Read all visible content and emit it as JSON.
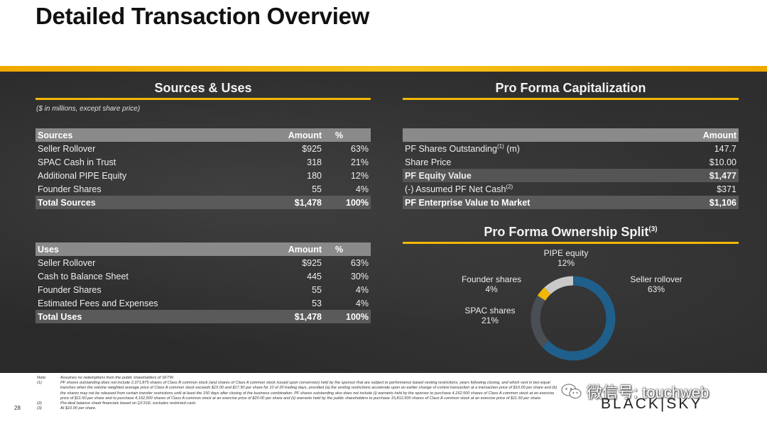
{
  "title": "Detailed Transaction Overview",
  "left_panel": {
    "title": "Sources & Uses",
    "note": "($ in millions, except share price)",
    "sources": {
      "headers": [
        "Sources",
        "Amount",
        "%"
      ],
      "rows": [
        {
          "label": "Seller Rollover",
          "amount": "$925",
          "pct": "63%"
        },
        {
          "label": "SPAC Cash in Trust",
          "amount": "318",
          "pct": "21%"
        },
        {
          "label": "Additional PIPE Equity",
          "amount": "180",
          "pct": "12%"
        },
        {
          "label": "Founder Shares",
          "amount": "55",
          "pct": "4%"
        }
      ],
      "total": {
        "label": "Total Sources",
        "amount": "$1,478",
        "pct": "100%"
      }
    },
    "uses": {
      "headers": [
        "Uses",
        "Amount",
        "%"
      ],
      "rows": [
        {
          "label": "Seller Rollover",
          "amount": "$925",
          "pct": "63%"
        },
        {
          "label": "Cash to Balance Sheet",
          "amount": "445",
          "pct": "30%"
        },
        {
          "label": "Founder Shares",
          "amount": "55",
          "pct": "4%"
        },
        {
          "label": "Estimated Fees and Expenses",
          "amount": "53",
          "pct": "4%"
        }
      ],
      "total": {
        "label": "Total Uses",
        "amount": "$1,478",
        "pct": "100%"
      }
    }
  },
  "right_panel": {
    "cap_title": "Pro Forma Capitalization",
    "cap_header": "Amount",
    "cap_rows": [
      {
        "label": "PF Shares Outstanding",
        "sup": "(1)",
        "suffix": " (m)",
        "value": "147.7"
      },
      {
        "label": "Share Price",
        "value": "$10.00"
      },
      {
        "label": "PF Equity Value",
        "value": "$1,477"
      },
      {
        "label": "(-) Assumed PF Net Cash",
        "sup": "(2)",
        "value": "$371"
      },
      {
        "label": "PF Enterprise Value to Market",
        "value": "$1,106"
      }
    ],
    "ownership_title": "Pro Forma Ownership Split",
    "ownership_sup": "(3)",
    "ownership": [
      {
        "name": "Seller rollover",
        "pct_label": "63%",
        "value": 63,
        "color": "#1f5f8b"
      },
      {
        "name": "SPAC shares",
        "pct_label": "21%",
        "value": 21,
        "color": "#4a4f55"
      },
      {
        "name": "Founder shares",
        "pct_label": "4%",
        "value": 4,
        "color": "#f2b705"
      },
      {
        "name": "PIPE equity",
        "pct_label": "12%",
        "value": 12,
        "color": "#c9c9c9"
      }
    ]
  },
  "footnotes": [
    {
      "k": "Note:",
      "v": "Assumes no redemptions from the public shareholders of SFTW."
    },
    {
      "k": "(1)",
      "v": "PF shares outstanding does not include 2,371,875 shares of Class B common stock (and shares of Class A common stock issued upon conversion) held by the sponsor that are subject to performance based vesting restrictions, years following closing, and which vest in two equal tranches when the volume weighted average price of Class A common stock exceeds $15.00 and $17.50 per share for 10 of 20 trading days, provided (a) the vesting restrictions accelerate upon an earlier change of control transaction at a transaction price of $10.00 per share and (b) the shares may not be released from certain transfer restrictions until at least the 150 days after closing of the business combination. PF shares outstanding also does not include (i) warrants held by the sponsor to purchase 4,162,500 shares of Class A common stock at an exercise price of $11.50 per share and to purchase 4,162,500 shares of Class A common stock at an exercise price of $20.00 per share and (ii) warrants held by the public shareholders to purchase 15,812,500 shares of Class A common stock at an exercise price of $11.50 per share."
    },
    {
      "k": "(2)",
      "v": "Pre-deal balance sheet financials based on Q1'21E; excludes restricted cash."
    },
    {
      "k": "(3)",
      "v": "At $10.00 per share."
    }
  ],
  "page_number": "28",
  "watermark": "微信号: touchweb",
  "logo": "BLACK|SKY"
}
